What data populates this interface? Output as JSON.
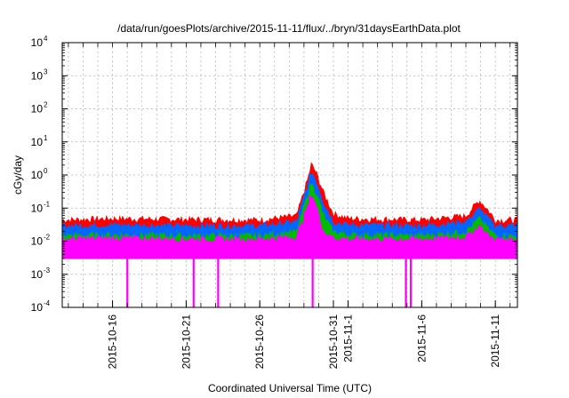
{
  "chart_data": {
    "type": "area",
    "title": "/data/run/goesPlots/archive/2015-11-11/flux/../bryn/31daysEarthData.plot",
    "xlabel": "Coordinated Universal Time (UTC)",
    "ylabel": "cGy/day",
    "yscale": "log",
    "ylim": [
      0.0001,
      10000
    ],
    "xlim": [
      "2015-10-12 14:00",
      "2015-11-12 12:00"
    ],
    "y_ticks": [
      {
        "base": "10",
        "exp": "-4",
        "value": 0.0001
      },
      {
        "base": "10",
        "exp": "-3",
        "value": 0.001
      },
      {
        "base": "10",
        "exp": "-2",
        "value": 0.01
      },
      {
        "base": "10",
        "exp": "-1",
        "value": 0.1
      },
      {
        "base": "10",
        "exp": "0",
        "value": 1
      },
      {
        "base": "10",
        "exp": "1",
        "value": 10
      },
      {
        "base": "10",
        "exp": "2",
        "value": 100
      },
      {
        "base": "10",
        "exp": "3",
        "value": 1000
      },
      {
        "base": "10",
        "exp": "4",
        "value": 10000
      }
    ],
    "x_ticks": [
      {
        "label": "2015-10-16",
        "date": "2015-10-16"
      },
      {
        "label": "2015-10-21",
        "date": "2015-10-21"
      },
      {
        "label": "2015-10-26",
        "date": "2015-10-26"
      },
      {
        "label": "2015-10-31",
        "date": "2015-10-31"
      },
      {
        "label": "2015-11-1",
        "date": "2015-11-01"
      },
      {
        "label": "2015-11-6",
        "date": "2015-11-06"
      },
      {
        "label": "2015-11-11",
        "date": "2015-11-11"
      }
    ],
    "grid": true,
    "series": [
      {
        "color": "#ff0000",
        "points": [
          [
            "2015-10-12 14:00",
            0.045
          ],
          [
            "2015-10-16 00:00",
            0.05
          ],
          [
            "2015-10-21 00:00",
            0.047
          ],
          [
            "2015-10-26 00:00",
            0.045
          ],
          [
            "2015-10-28 12:00",
            0.06
          ],
          [
            "2015-10-29 08:00",
            1.0
          ],
          [
            "2015-10-29 12:00",
            2.2
          ],
          [
            "2015-10-29 20:00",
            1.2
          ],
          [
            "2015-10-30 08:00",
            0.3
          ],
          [
            "2015-10-31 00:00",
            0.07
          ],
          [
            "2015-11-01 00:00",
            0.05
          ],
          [
            "2015-11-06 00:00",
            0.045
          ],
          [
            "2015-11-09 00:00",
            0.06
          ],
          [
            "2015-11-09 22:00",
            0.18
          ],
          [
            "2015-11-10 12:00",
            0.09
          ],
          [
            "2015-11-11 00:00",
            0.045
          ],
          [
            "2015-11-12 12:00",
            0.045
          ]
        ]
      },
      {
        "color": "#0066ff",
        "points": [
          [
            "2015-10-12 14:00",
            0.03
          ],
          [
            "2015-10-16 00:00",
            0.032
          ],
          [
            "2015-10-21 00:00",
            0.03
          ],
          [
            "2015-10-26 00:00",
            0.03
          ],
          [
            "2015-10-28 12:00",
            0.04
          ],
          [
            "2015-10-29 08:00",
            0.7
          ],
          [
            "2015-10-29 12:00",
            1.3
          ],
          [
            "2015-10-29 20:00",
            0.7
          ],
          [
            "2015-10-30 08:00",
            0.15
          ],
          [
            "2015-10-31 00:00",
            0.04
          ],
          [
            "2015-11-01 00:00",
            0.032
          ],
          [
            "2015-11-06 00:00",
            0.03
          ],
          [
            "2015-11-09 00:00",
            0.04
          ],
          [
            "2015-11-09 22:00",
            0.1
          ],
          [
            "2015-11-10 12:00",
            0.05
          ],
          [
            "2015-11-11 00:00",
            0.03
          ],
          [
            "2015-11-12 12:00",
            0.03
          ]
        ]
      },
      {
        "color": "#00bb00",
        "points": [
          [
            "2015-10-12 14:00",
            0.015
          ],
          [
            "2015-10-16 00:00",
            0.016
          ],
          [
            "2015-10-21 00:00",
            0.015
          ],
          [
            "2015-10-26 00:00",
            0.015
          ],
          [
            "2015-10-28 12:00",
            0.02
          ],
          [
            "2015-10-29 08:00",
            0.35
          ],
          [
            "2015-10-29 12:00",
            0.6
          ],
          [
            "2015-10-29 20:00",
            0.3
          ],
          [
            "2015-10-30 08:00",
            0.06
          ],
          [
            "2015-10-31 00:00",
            0.02
          ],
          [
            "2015-11-01 00:00",
            0.016
          ],
          [
            "2015-11-06 00:00",
            0.015
          ],
          [
            "2015-11-09 00:00",
            0.02
          ],
          [
            "2015-11-09 22:00",
            0.05
          ],
          [
            "2015-11-10 12:00",
            0.025
          ],
          [
            "2015-11-11 00:00",
            0.015
          ],
          [
            "2015-11-12 12:00",
            0.015
          ]
        ]
      },
      {
        "color": "#ff00ff",
        "points": [
          [
            "2015-10-12 14:00",
            0.012
          ],
          [
            "2015-10-16 00:00",
            0.013
          ],
          [
            "2015-10-21 00:00",
            0.012
          ],
          [
            "2015-10-26 00:00",
            0.012
          ],
          [
            "2015-10-28 12:00",
            0.014
          ],
          [
            "2015-10-29 08:00",
            0.15
          ],
          [
            "2015-10-29 12:00",
            0.3
          ],
          [
            "2015-10-29 20:00",
            0.12
          ],
          [
            "2015-10-30 08:00",
            0.02
          ],
          [
            "2015-10-31 00:00",
            0.013
          ],
          [
            "2015-11-01 00:00",
            0.012
          ],
          [
            "2015-11-06 00:00",
            0.012
          ],
          [
            "2015-11-09 00:00",
            0.014
          ],
          [
            "2015-11-09 22:00",
            0.03
          ],
          [
            "2015-11-10 12:00",
            0.016
          ],
          [
            "2015-11-11 00:00",
            0.012
          ],
          [
            "2015-11-12 12:00",
            0.012
          ]
        ]
      }
    ],
    "baseline_floor": 0.003,
    "dropouts": [
      "2015-10-17 00:00",
      "2015-10-21 12:00",
      "2015-10-23 04:00",
      "2015-10-29 14:00",
      "2015-11-04 22:00",
      "2015-11-05 06:00"
    ],
    "colors": {
      "red": "#ff0000",
      "blue": "#0066ff",
      "green": "#00bb00",
      "magenta": "#ff00ff",
      "grid": "#b0b0b0"
    }
  }
}
